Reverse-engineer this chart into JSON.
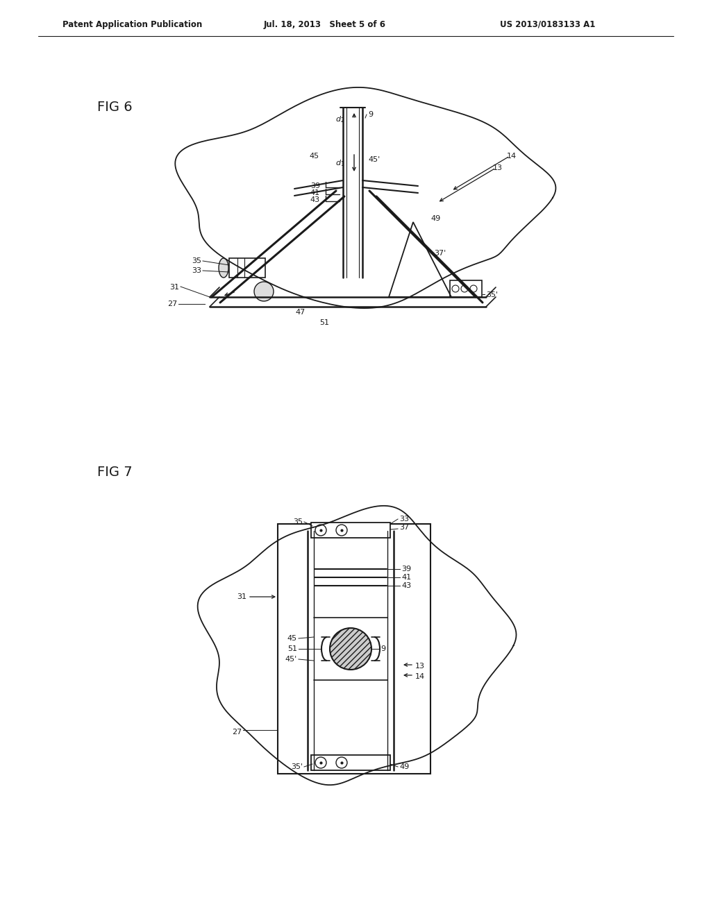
{
  "bg_color": "#ffffff",
  "line_color": "#1a1a1a",
  "header_left": "Patent Application Publication",
  "header_mid": "Jul. 18, 2013   Sheet 5 of 6",
  "header_right": "US 2013/0183133 A1"
}
